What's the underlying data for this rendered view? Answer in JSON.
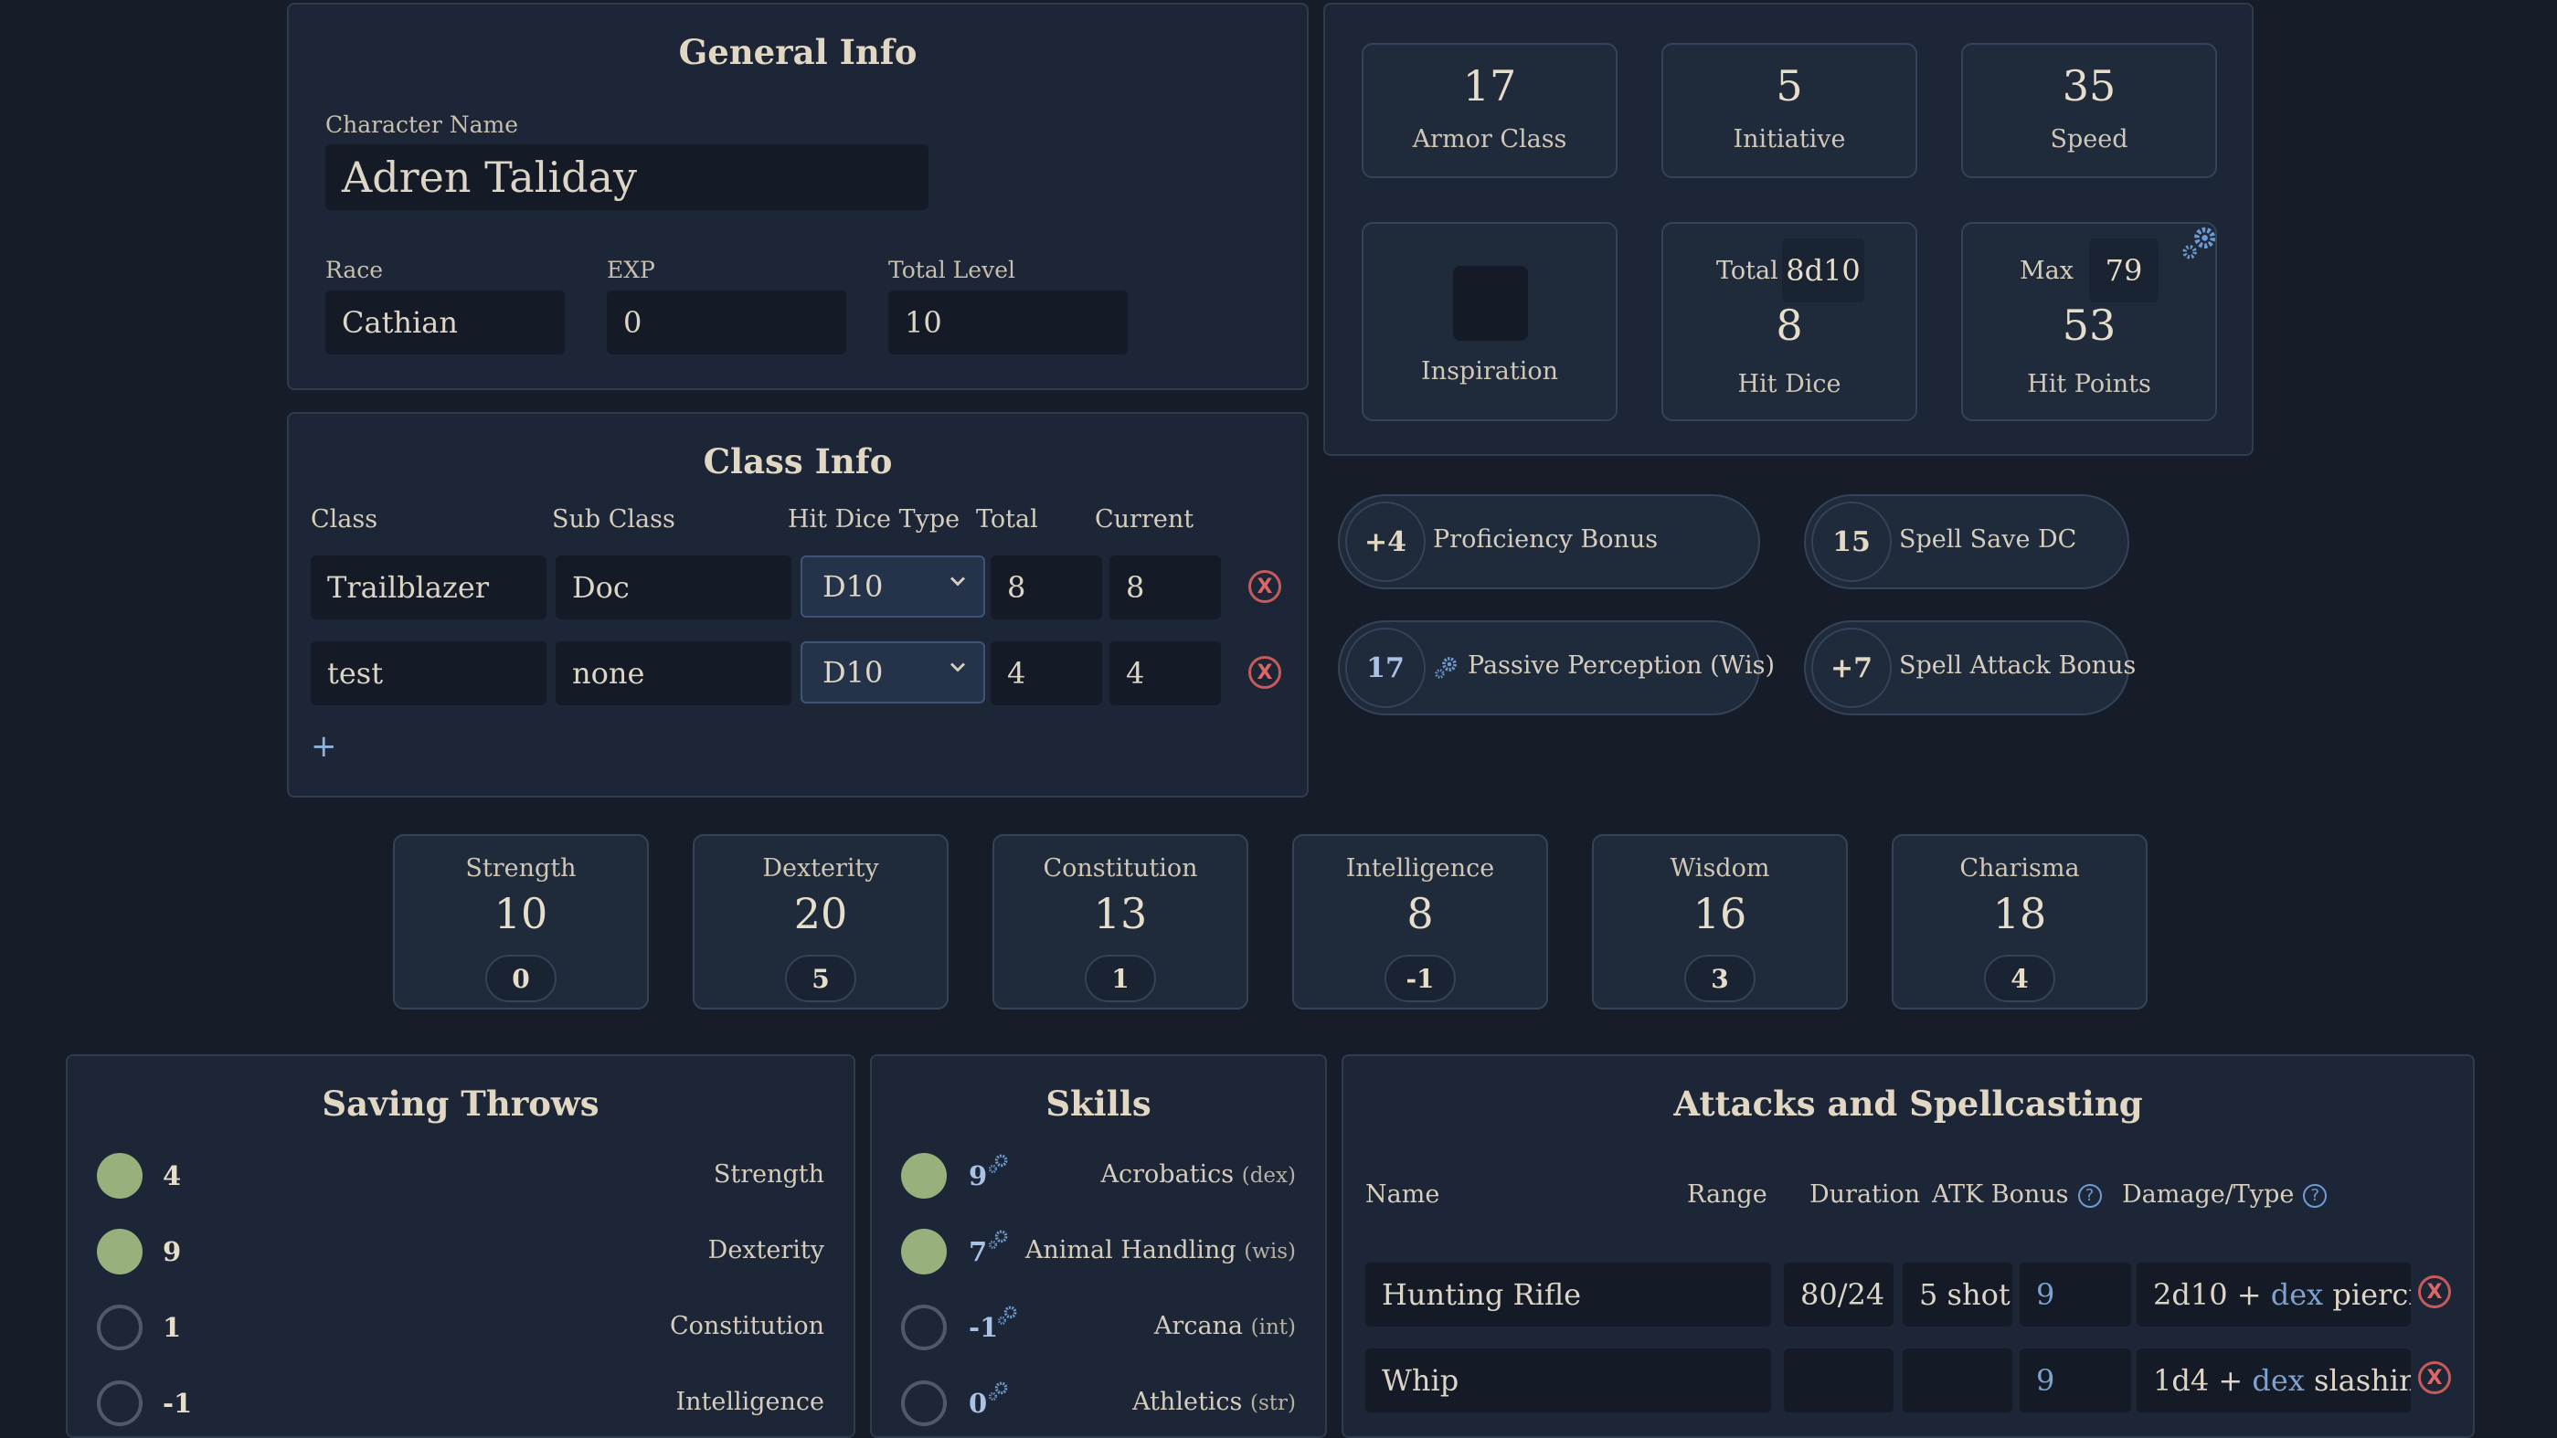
{
  "general_info": {
    "title": "General Info",
    "character_name_label": "Character Name",
    "character_name": "Adren Taliday",
    "race_label": "Race",
    "race": "Cathian",
    "exp_label": "EXP",
    "exp": "0",
    "total_level_label": "Total Level",
    "total_level": "10"
  },
  "class_info": {
    "title": "Class Info",
    "headers": {
      "class": "Class",
      "sub_class": "Sub Class",
      "hit_dice_type": "Hit Dice Type",
      "total": "Total",
      "current": "Current"
    },
    "rows": [
      {
        "class": "Trailblazer",
        "sub_class": "Doc",
        "hit_dice_type": "D10",
        "total": "8",
        "current": "8",
        "remove": "X"
      },
      {
        "class": "test",
        "sub_class": "none",
        "hit_dice_type": "D10",
        "total": "4",
        "current": "4",
        "remove": "X"
      }
    ],
    "add_label": "+"
  },
  "combat": {
    "armor_class": {
      "value": "17",
      "label": "Armor Class"
    },
    "initiative": {
      "value": "5",
      "label": "Initiative"
    },
    "speed": {
      "value": "35",
      "label": "Speed"
    },
    "inspiration": {
      "label": "Inspiration",
      "checked": false
    },
    "hit_dice": {
      "total_label": "Total",
      "total": "8d10",
      "value": "8",
      "label": "Hit Dice"
    },
    "hit_points": {
      "max_label": "Max",
      "max": "79",
      "value": "53",
      "label": "Hit Points"
    }
  },
  "bonuses": {
    "proficiency": {
      "value": "+4",
      "label": "Proficiency Bonus"
    },
    "spell_save_dc": {
      "value": "15",
      "label": "Spell Save DC"
    },
    "passive_perception": {
      "value": "17",
      "label": "Passive Perception (Wis)"
    },
    "spell_attack": {
      "value": "+7",
      "label": "Spell Attack Bonus"
    }
  },
  "abilities": [
    {
      "name": "Strength",
      "score": "10",
      "mod": "0"
    },
    {
      "name": "Dexterity",
      "score": "20",
      "mod": "5"
    },
    {
      "name": "Constitution",
      "score": "13",
      "mod": "1"
    },
    {
      "name": "Intelligence",
      "score": "8",
      "mod": "-1"
    },
    {
      "name": "Wisdom",
      "score": "16",
      "mod": "3"
    },
    {
      "name": "Charisma",
      "score": "18",
      "mod": "4"
    }
  ],
  "saving_throws": {
    "title": "Saving Throws",
    "rows": [
      {
        "value": "4",
        "name": "Strength",
        "proficient": true
      },
      {
        "value": "9",
        "name": "Dexterity",
        "proficient": true
      },
      {
        "value": "1",
        "name": "Constitution",
        "proficient": false
      },
      {
        "value": "-1",
        "name": "Intelligence",
        "proficient": false
      }
    ]
  },
  "skills": {
    "title": "Skills",
    "rows": [
      {
        "value": "9",
        "name": "Acrobatics",
        "abbr": "(dex)",
        "proficient": true
      },
      {
        "value": "7",
        "name": "Animal Handling",
        "abbr": "(wis)",
        "proficient": true
      },
      {
        "value": "-1",
        "name": "Arcana",
        "abbr": "(int)",
        "proficient": false
      },
      {
        "value": "0",
        "name": "Athletics",
        "abbr": "(str)",
        "proficient": false
      }
    ]
  },
  "attacks": {
    "title": "Attacks and Spellcasting",
    "headers": {
      "name": "Name",
      "range": "Range",
      "duration": "Duration",
      "atk_bonus": "ATK Bonus",
      "damage_type": "Damage/Type"
    },
    "help_label": "?",
    "rows": [
      {
        "name": "Hunting Rifle",
        "range": "80/24",
        "duration": "5 shot",
        "atk_bonus": "9",
        "damage_pre": "2d10 + ",
        "damage_stat": "dex",
        "damage_post": " piercing",
        "remove": "X"
      },
      {
        "name": "Whip",
        "range": "",
        "duration": "",
        "atk_bonus": "9",
        "damage_pre": "1d4 + ",
        "damage_stat": "dex",
        "damage_post": " slashing",
        "remove": "X"
      }
    ]
  }
}
